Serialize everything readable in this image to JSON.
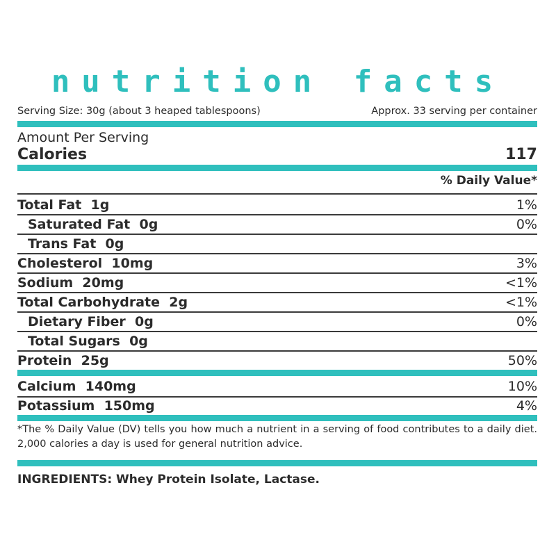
{
  "title": "nutrition facts",
  "serving": {
    "size": "Serving Size: 30g (about 3 heaped tablespoons)",
    "per_container": "Approx. 33 serving per container"
  },
  "amount_per_serving": "Amount Per Serving",
  "calories": {
    "label": "Calories",
    "value": "117"
  },
  "daily_value_header": "% Daily Value*",
  "nutrients": [
    {
      "name": "Total Fat",
      "amount": "1g",
      "dv": "1%"
    },
    {
      "name": "Saturated Fat",
      "amount": "0g",
      "dv": "0%"
    },
    {
      "name": "Trans Fat",
      "amount": "0g",
      "dv": ""
    },
    {
      "name": "Cholesterol",
      "amount": "10mg",
      "dv": "3%"
    },
    {
      "name": "Sodium",
      "amount": "20mg",
      "dv": "<1%"
    },
    {
      "name": "Total Carbohydrate",
      "amount": "2g",
      "dv": "<1%"
    },
    {
      "name": "Dietary Fiber",
      "amount": "0g",
      "dv": "0%"
    },
    {
      "name": "Total Sugars",
      "amount": "0g",
      "dv": ""
    },
    {
      "name": "Protein",
      "amount": "25g",
      "dv": "50%"
    }
  ],
  "minerals": [
    {
      "name": "Calcium",
      "amount": "140mg",
      "dv": "10%"
    },
    {
      "name": "Potassium",
      "amount": "150mg",
      "dv": "4%"
    }
  ],
  "footnote": "*The % Daily Value (DV) tells you how much a nutrient in a serving of food contributes to a daily diet. 2,000 calories a day is used for general nutrition advice.",
  "ingredients": "INGREDIENTS: Whey Protein Isolate, Lactase.",
  "colors": {
    "accent": "#2fbfbd",
    "text": "#2b2b2b",
    "rule": "#3a3a3a"
  }
}
